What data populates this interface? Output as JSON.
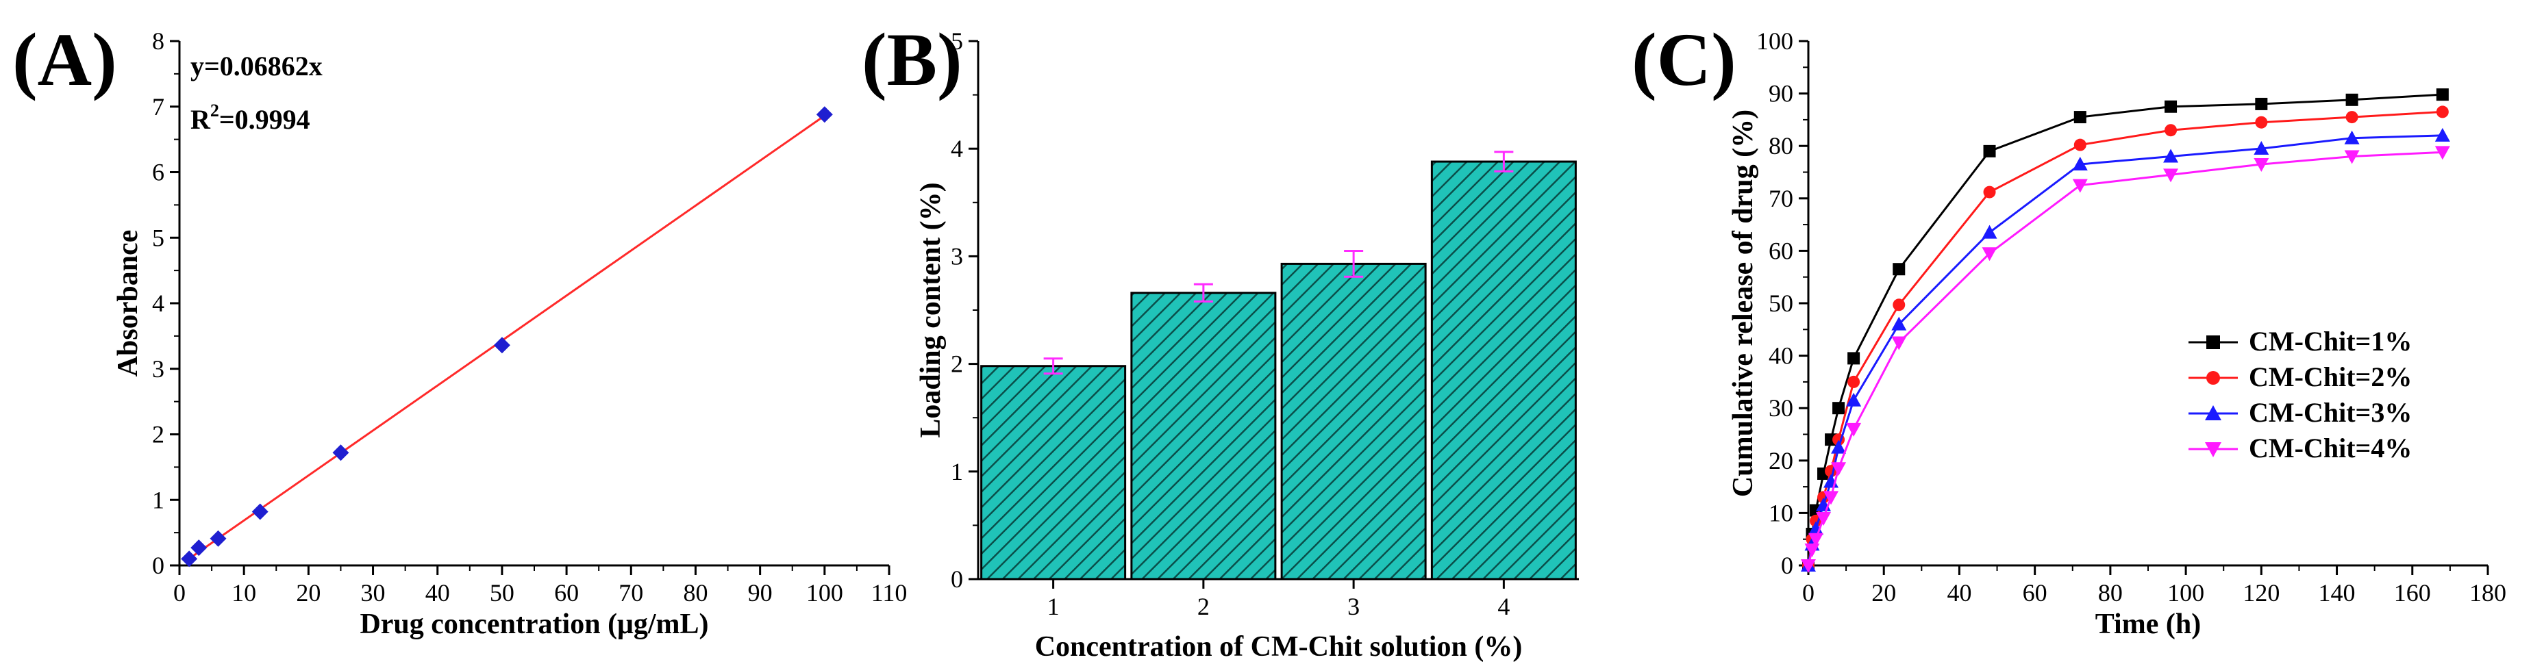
{
  "chart_data": [
    {
      "panel": "(A)",
      "type": "scatter",
      "xlabel": "Drug concentration (μg/mL)",
      "ylabel": "Absorbance",
      "xlim": [
        0,
        110
      ],
      "ylim": [
        0,
        8
      ],
      "xticks": [
        0,
        10,
        20,
        30,
        40,
        50,
        60,
        70,
        80,
        90,
        100,
        110
      ],
      "yticks": [
        0,
        1,
        2,
        3,
        4,
        5,
        6,
        7,
        8
      ],
      "x": [
        1.5,
        3,
        6,
        12.5,
        25,
        50,
        100
      ],
      "y": [
        0.1,
        0.27,
        0.41,
        0.82,
        1.72,
        3.36,
        6.88
      ],
      "fit_line": {
        "slope": 0.06862,
        "x_range": [
          1.5,
          100
        ]
      },
      "equation": "y=0.06862x",
      "r2_label": "R",
      "r2_sup": "2",
      "r2_value": "=0.9994",
      "marker_color": "#1f1fd0",
      "line_color": "#ff2a2a"
    },
    {
      "panel": "(B)",
      "type": "bar",
      "xlabel": "Concentration of CM-Chit solution (%)",
      "ylabel": "Loading content (%)",
      "categories": [
        "1",
        "2",
        "3",
        "4"
      ],
      "values": [
        1.98,
        2.66,
        2.93,
        3.88
      ],
      "errors": [
        0.07,
        0.08,
        0.12,
        0.09
      ],
      "ylim": [
        0,
        5
      ],
      "yticks": [
        0,
        1,
        2,
        3,
        4,
        5
      ],
      "bar_color": "#20c3b8",
      "hatch_color": "#0a4f4a",
      "error_color": "#ff2bff"
    },
    {
      "panel": "(C)",
      "type": "line",
      "xlabel": "Time (h)",
      "ylabel": "Cumulative release of drug (%)",
      "xlim": [
        0,
        180
      ],
      "ylim": [
        0,
        100
      ],
      "xticks": [
        0,
        20,
        40,
        60,
        80,
        100,
        120,
        140,
        160,
        180
      ],
      "yticks": [
        0,
        10,
        20,
        30,
        40,
        50,
        60,
        70,
        80,
        90,
        100
      ],
      "x": [
        0,
        1,
        2,
        4,
        6,
        8,
        12,
        24,
        48,
        72,
        96,
        120,
        144,
        168
      ],
      "legend_position": "center-right",
      "series": [
        {
          "name": "CM-Chit=1%",
          "color": "#000000",
          "marker": "square",
          "values": [
            0,
            6,
            10.5,
            17.5,
            24,
            30,
            39.5,
            56.5,
            79,
            85.5,
            87.5,
            88,
            88.8,
            89.8
          ]
        },
        {
          "name": "CM-Chit=2%",
          "color": "#ff1a1a",
          "marker": "circle",
          "values": [
            0,
            5,
            8.5,
            13,
            18,
            24,
            35,
            49.7,
            71.2,
            80.2,
            83,
            84.5,
            85.5,
            86.5
          ]
        },
        {
          "name": "CM-Chit=3%",
          "color": "#1a1aff",
          "marker": "triangle-up",
          "values": [
            0,
            4,
            7,
            11.5,
            16,
            22.5,
            31.5,
            46,
            63.5,
            76.5,
            78,
            79.5,
            81.5,
            82
          ]
        },
        {
          "name": "CM-Chit=4%",
          "color": "#ff1aff",
          "marker": "triangle-down",
          "values": [
            0,
            3,
            5,
            9,
            13,
            18.5,
            26,
            42.5,
            59.5,
            72.5,
            74.5,
            76.5,
            78,
            78.8
          ]
        }
      ]
    }
  ]
}
